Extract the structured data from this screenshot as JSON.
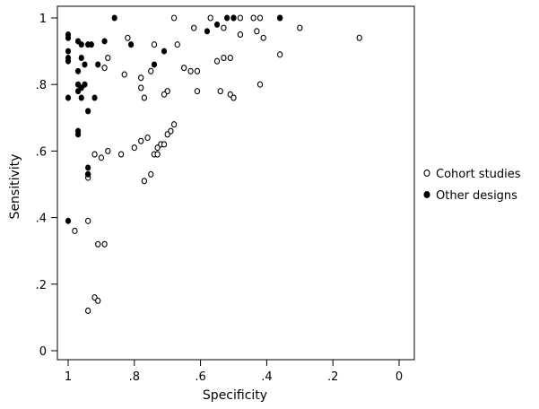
{
  "chart_data": {
    "type": "scatter",
    "title": "",
    "xlabel": "Specificity",
    "ylabel": "Sensitivity",
    "x_reversed": true,
    "xlim": [
      0,
      1
    ],
    "ylim": [
      0,
      1
    ],
    "x_ticks": [
      1,
      0.8,
      0.6,
      0.4,
      0.2,
      0
    ],
    "x_tick_labels": [
      "1",
      ".8",
      ".6",
      ".4",
      ".2",
      "0"
    ],
    "y_ticks": [
      0,
      0.2,
      0.4,
      0.6,
      0.8,
      1
    ],
    "y_tick_labels": [
      "0",
      ".2",
      ".4",
      ".6",
      ".8",
      "1"
    ],
    "grid": false,
    "legend_position": "right",
    "series": [
      {
        "name": "Cohort studies",
        "marker": "hollow-circle",
        "color": "#000000",
        "points": [
          [
            0.68,
            1.0
          ],
          [
            0.57,
            1.0
          ],
          [
            0.5,
            1.0
          ],
          [
            0.48,
            1.0
          ],
          [
            0.44,
            1.0
          ],
          [
            0.42,
            1.0
          ],
          [
            0.36,
            1.0
          ],
          [
            0.3,
            0.97
          ],
          [
            0.12,
            0.94
          ],
          [
            0.43,
            0.96
          ],
          [
            0.41,
            0.94
          ],
          [
            0.48,
            0.95
          ],
          [
            0.62,
            0.97
          ],
          [
            0.53,
            0.97
          ],
          [
            0.82,
            0.94
          ],
          [
            0.74,
            0.92
          ],
          [
            0.67,
            0.92
          ],
          [
            0.36,
            0.89
          ],
          [
            0.53,
            0.88
          ],
          [
            0.51,
            0.88
          ],
          [
            0.55,
            0.87
          ],
          [
            0.63,
            0.84
          ],
          [
            0.65,
            0.85
          ],
          [
            0.75,
            0.84
          ],
          [
            0.78,
            0.82
          ],
          [
            0.83,
            0.83
          ],
          [
            0.61,
            0.84
          ],
          [
            0.42,
            0.8
          ],
          [
            0.78,
            0.79
          ],
          [
            0.7,
            0.78
          ],
          [
            0.71,
            0.77
          ],
          [
            0.61,
            0.78
          ],
          [
            0.54,
            0.78
          ],
          [
            0.51,
            0.77
          ],
          [
            0.5,
            0.76
          ],
          [
            0.77,
            0.76
          ],
          [
            0.68,
            0.68
          ],
          [
            0.69,
            0.66
          ],
          [
            0.7,
            0.65
          ],
          [
            0.72,
            0.62
          ],
          [
            0.71,
            0.62
          ],
          [
            0.73,
            0.61
          ],
          [
            0.74,
            0.59
          ],
          [
            0.73,
            0.59
          ],
          [
            0.8,
            0.61
          ],
          [
            0.78,
            0.63
          ],
          [
            0.76,
            0.64
          ],
          [
            0.88,
            0.6
          ],
          [
            0.84,
            0.59
          ],
          [
            0.75,
            0.53
          ],
          [
            0.77,
            0.51
          ],
          [
            0.92,
            0.59
          ],
          [
            0.9,
            0.58
          ],
          [
            0.94,
            0.53
          ],
          [
            0.94,
            0.52
          ],
          [
            0.94,
            0.39
          ],
          [
            0.98,
            0.36
          ],
          [
            0.91,
            0.32
          ],
          [
            0.89,
            0.32
          ],
          [
            0.92,
            0.16
          ],
          [
            0.91,
            0.15
          ],
          [
            0.94,
            0.12
          ],
          [
            0.88,
            0.88
          ],
          [
            0.89,
            0.85
          ]
        ]
      },
      {
        "name": "Other designs",
        "marker": "filled-circle",
        "color": "#000000",
        "points": [
          [
            0.86,
            1.0
          ],
          [
            0.52,
            1.0
          ],
          [
            0.5,
            1.0
          ],
          [
            0.36,
            1.0
          ],
          [
            0.55,
            0.98
          ],
          [
            1.0,
            0.95
          ],
          [
            1.0,
            0.94
          ],
          [
            0.97,
            0.93
          ],
          [
            0.94,
            0.92
          ],
          [
            0.89,
            0.93
          ],
          [
            0.81,
            0.92
          ],
          [
            0.71,
            0.9
          ],
          [
            0.58,
            0.96
          ],
          [
            1.0,
            0.9
          ],
          [
            1.0,
            0.88
          ],
          [
            1.0,
            0.87
          ],
          [
            0.96,
            0.88
          ],
          [
            0.95,
            0.86
          ],
          [
            0.91,
            0.86
          ],
          [
            0.74,
            0.86
          ],
          [
            0.97,
            0.84
          ],
          [
            0.97,
            0.8
          ],
          [
            0.96,
            0.79
          ],
          [
            0.95,
            0.8
          ],
          [
            0.97,
            0.78
          ],
          [
            0.96,
            0.76
          ],
          [
            1.0,
            0.76
          ],
          [
            0.92,
            0.76
          ],
          [
            0.94,
            0.72
          ],
          [
            0.97,
            0.66
          ],
          [
            0.97,
            0.65
          ],
          [
            0.94,
            0.55
          ],
          [
            0.94,
            0.53
          ],
          [
            1.0,
            0.39
          ],
          [
            0.96,
            0.92
          ],
          [
            0.93,
            0.92
          ]
        ]
      }
    ]
  }
}
